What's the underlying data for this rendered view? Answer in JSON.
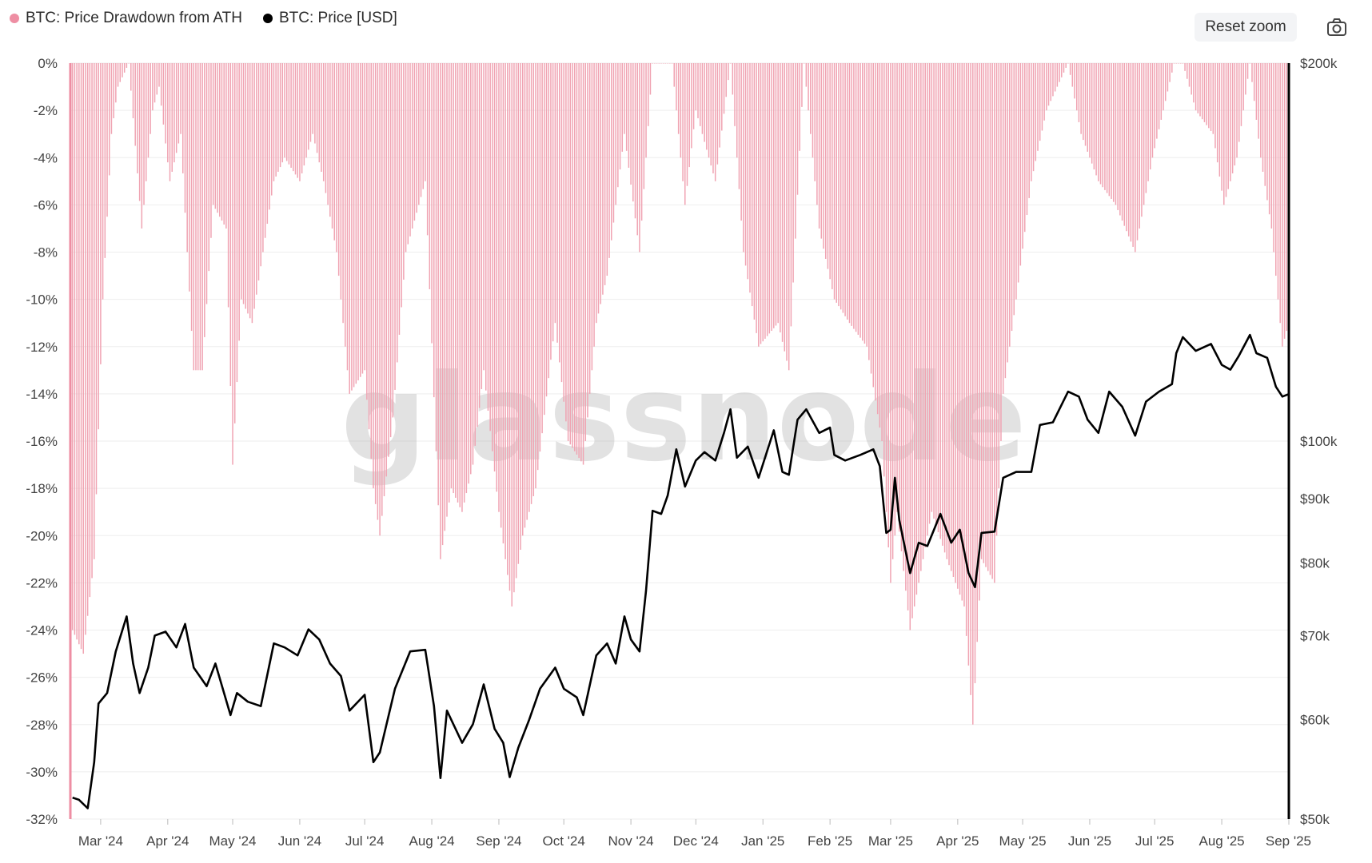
{
  "legend": {
    "series1": "BTC: Price Drawdown from ATH",
    "series2": "BTC: Price [USD]"
  },
  "toolbar": {
    "reset_zoom": "Reset zoom",
    "camera_icon": "camera-icon"
  },
  "watermark": "glassnode",
  "colors": {
    "drawdown": "#f0a3b2",
    "drawdown_axis": "#ee8ea3",
    "price": "#000000",
    "grid": "#eeeeee"
  },
  "chart_data": {
    "type": "bar",
    "x_range": [
      "2024-02-16",
      "2025-09-01"
    ],
    "x_ticks": [
      {
        "date": "2024-03-01",
        "label": "Mar '24"
      },
      {
        "date": "2024-04-01",
        "label": "Apr '24"
      },
      {
        "date": "2024-05-01",
        "label": "May '24"
      },
      {
        "date": "2024-06-01",
        "label": "Jun '24"
      },
      {
        "date": "2024-07-01",
        "label": "Jul '24"
      },
      {
        "date": "2024-08-01",
        "label": "Aug '24"
      },
      {
        "date": "2024-09-01",
        "label": "Sep '24"
      },
      {
        "date": "2024-10-01",
        "label": "Oct '24"
      },
      {
        "date": "2024-11-01",
        "label": "Nov '24"
      },
      {
        "date": "2024-12-01",
        "label": "Dec '24"
      },
      {
        "date": "2025-01-01",
        "label": "Jan '25"
      },
      {
        "date": "2025-02-01",
        "label": "Feb '25"
      },
      {
        "date": "2025-03-01",
        "label": "Mar '25"
      },
      {
        "date": "2025-04-01",
        "label": "Apr '25"
      },
      {
        "date": "2025-05-01",
        "label": "May '25"
      },
      {
        "date": "2025-06-01",
        "label": "Jun '25"
      },
      {
        "date": "2025-07-01",
        "label": "Jul '25"
      },
      {
        "date": "2025-08-01",
        "label": "Aug '25"
      },
      {
        "date": "2025-09-01",
        "label": "Sep '25"
      }
    ],
    "y_left": {
      "label": "",
      "range": [
        -32,
        0
      ],
      "ticks": [
        "0%",
        "-2%",
        "-4%",
        "-6%",
        "-8%",
        "-10%",
        "-12%",
        "-14%",
        "-16%",
        "-18%",
        "-20%",
        "-22%",
        "-24%",
        "-26%",
        "-28%",
        "-30%",
        "-32%"
      ],
      "tick_values": [
        0,
        -2,
        -4,
        -6,
        -8,
        -10,
        -12,
        -14,
        -16,
        -18,
        -20,
        -22,
        -24,
        -26,
        -28,
        -30,
        -32
      ]
    },
    "y_right": {
      "label": "",
      "scale": "log",
      "range": [
        50000,
        200000
      ],
      "ticks": [
        {
          "value": 200000,
          "label": "$200k"
        },
        {
          "value": 100000,
          "label": "$100k"
        },
        {
          "value": 90000,
          "label": "$90k"
        },
        {
          "value": 80000,
          "label": "$80k"
        },
        {
          "value": 70000,
          "label": "$70k"
        },
        {
          "value": 60000,
          "label": "$60k"
        },
        {
          "value": 50000,
          "label": "$50k"
        }
      ]
    },
    "series": [
      {
        "name": "BTC: Price Drawdown from ATH",
        "type": "bar",
        "unit": "%",
        "points": [
          [
            "2024-02-17",
            -24
          ],
          [
            "2024-02-22",
            -25
          ],
          [
            "2024-02-27",
            -21
          ],
          [
            "2024-03-02",
            -10
          ],
          [
            "2024-03-06",
            -3
          ],
          [
            "2024-03-09",
            -1
          ],
          [
            "2024-03-14",
            0
          ],
          [
            "2024-03-20",
            -7
          ],
          [
            "2024-03-25",
            -2
          ],
          [
            "2024-03-28",
            -1
          ],
          [
            "2024-04-02",
            -5
          ],
          [
            "2024-04-07",
            -3
          ],
          [
            "2024-04-13",
            -13
          ],
          [
            "2024-04-17",
            -13
          ],
          [
            "2024-04-22",
            -6
          ],
          [
            "2024-04-28",
            -7
          ],
          [
            "2024-05-01",
            -17
          ],
          [
            "2024-05-05",
            -10
          ],
          [
            "2024-05-10",
            -11
          ],
          [
            "2024-05-15",
            -8
          ],
          [
            "2024-05-20",
            -5
          ],
          [
            "2024-05-25",
            -4
          ],
          [
            "2024-06-01",
            -5
          ],
          [
            "2024-06-07",
            -3
          ],
          [
            "2024-06-12",
            -5
          ],
          [
            "2024-06-18",
            -8
          ],
          [
            "2024-06-24",
            -14
          ],
          [
            "2024-07-01",
            -13
          ],
          [
            "2024-07-05",
            -18
          ],
          [
            "2024-07-08",
            -20
          ],
          [
            "2024-07-14",
            -15
          ],
          [
            "2024-07-20",
            -8
          ],
          [
            "2024-07-29",
            -5
          ],
          [
            "2024-08-05",
            -21
          ],
          [
            "2024-08-10",
            -18
          ],
          [
            "2024-08-15",
            -19
          ],
          [
            "2024-08-20",
            -17
          ],
          [
            "2024-08-25",
            -13
          ],
          [
            "2024-09-01",
            -19
          ],
          [
            "2024-09-07",
            -23
          ],
          [
            "2024-09-12",
            -20
          ],
          [
            "2024-09-18",
            -18
          ],
          [
            "2024-09-27",
            -11
          ],
          [
            "2024-10-03",
            -16
          ],
          [
            "2024-10-10",
            -17
          ],
          [
            "2024-10-16",
            -11
          ],
          [
            "2024-10-21",
            -9
          ],
          [
            "2024-10-29",
            -3
          ],
          [
            "2024-11-05",
            -8
          ],
          [
            "2024-11-11",
            0
          ],
          [
            "2024-11-20",
            0
          ],
          [
            "2024-11-26",
            -6
          ],
          [
            "2024-12-01",
            -2
          ],
          [
            "2024-12-10",
            -5
          ],
          [
            "2024-12-17",
            0
          ],
          [
            "2024-12-23",
            -8
          ],
          [
            "2024-12-30",
            -12
          ],
          [
            "2025-01-08",
            -11
          ],
          [
            "2025-01-13",
            -13
          ],
          [
            "2025-01-20",
            0
          ],
          [
            "2025-01-27",
            -7
          ],
          [
            "2025-02-03",
            -10
          ],
          [
            "2025-02-10",
            -11
          ],
          [
            "2025-02-18",
            -12
          ],
          [
            "2025-02-25",
            -16
          ],
          [
            "2025-03-01",
            -22
          ],
          [
            "2025-03-04",
            -19
          ],
          [
            "2025-03-10",
            -24
          ],
          [
            "2025-03-14",
            -22
          ],
          [
            "2025-03-20",
            -19
          ],
          [
            "2025-03-27",
            -21
          ],
          [
            "2025-03-31",
            -22
          ],
          [
            "2025-04-04",
            -23
          ],
          [
            "2025-04-08",
            -28
          ],
          [
            "2025-04-12",
            -21
          ],
          [
            "2025-04-18",
            -22
          ],
          [
            "2025-04-22",
            -14
          ],
          [
            "2025-04-28",
            -10
          ],
          [
            "2025-05-05",
            -5
          ],
          [
            "2025-05-12",
            -2
          ],
          [
            "2025-05-22",
            0
          ],
          [
            "2025-05-28",
            -3
          ],
          [
            "2025-06-05",
            -5
          ],
          [
            "2025-06-13",
            -6
          ],
          [
            "2025-06-22",
            -8
          ],
          [
            "2025-06-30",
            -4
          ],
          [
            "2025-07-10",
            0
          ],
          [
            "2025-07-14",
            0
          ],
          [
            "2025-07-20",
            -2
          ],
          [
            "2025-07-28",
            -3
          ],
          [
            "2025-08-02",
            -6
          ],
          [
            "2025-08-08",
            -4
          ],
          [
            "2025-08-14",
            0
          ],
          [
            "2025-08-19",
            -4
          ],
          [
            "2025-08-24",
            -7
          ],
          [
            "2025-08-29",
            -12
          ],
          [
            "2025-09-01",
            -11
          ]
        ]
      },
      {
        "name": "BTC: Price [USD]",
        "type": "line",
        "unit": "USD",
        "points": [
          [
            "2024-02-17",
            52000
          ],
          [
            "2024-02-20",
            51800
          ],
          [
            "2024-02-24",
            51000
          ],
          [
            "2024-02-27",
            55500
          ],
          [
            "2024-02-29",
            61800
          ],
          [
            "2024-03-04",
            63000
          ],
          [
            "2024-03-08",
            68000
          ],
          [
            "2024-03-13",
            72500
          ],
          [
            "2024-03-16",
            66500
          ],
          [
            "2024-03-19",
            63000
          ],
          [
            "2024-03-23",
            66000
          ],
          [
            "2024-03-26",
            70000
          ],
          [
            "2024-03-31",
            70500
          ],
          [
            "2024-04-05",
            68500
          ],
          [
            "2024-04-09",
            71500
          ],
          [
            "2024-04-13",
            66000
          ],
          [
            "2024-04-19",
            63800
          ],
          [
            "2024-04-23",
            66500
          ],
          [
            "2024-04-30",
            60500
          ],
          [
            "2024-05-03",
            63000
          ],
          [
            "2024-05-08",
            62000
          ],
          [
            "2024-05-14",
            61500
          ],
          [
            "2024-05-20",
            69000
          ],
          [
            "2024-05-25",
            68500
          ],
          [
            "2024-05-31",
            67500
          ],
          [
            "2024-06-05",
            70800
          ],
          [
            "2024-06-10",
            69500
          ],
          [
            "2024-06-15",
            66500
          ],
          [
            "2024-06-20",
            65000
          ],
          [
            "2024-06-24",
            61000
          ],
          [
            "2024-07-01",
            62800
          ],
          [
            "2024-07-05",
            55500
          ],
          [
            "2024-07-08",
            56500
          ],
          [
            "2024-07-15",
            63500
          ],
          [
            "2024-07-22",
            68000
          ],
          [
            "2024-07-29",
            68200
          ],
          [
            "2024-08-02",
            61500
          ],
          [
            "2024-08-05",
            53900
          ],
          [
            "2024-08-08",
            61000
          ],
          [
            "2024-08-15",
            57500
          ],
          [
            "2024-08-20",
            59500
          ],
          [
            "2024-08-25",
            64000
          ],
          [
            "2024-08-30",
            59000
          ],
          [
            "2024-09-03",
            57500
          ],
          [
            "2024-09-06",
            54000
          ],
          [
            "2024-09-10",
            57000
          ],
          [
            "2024-09-15",
            60000
          ],
          [
            "2024-09-20",
            63500
          ],
          [
            "2024-09-27",
            66000
          ],
          [
            "2024-10-01",
            63500
          ],
          [
            "2024-10-07",
            62500
          ],
          [
            "2024-10-10",
            60500
          ],
          [
            "2024-10-16",
            67500
          ],
          [
            "2024-10-21",
            69000
          ],
          [
            "2024-10-25",
            66500
          ],
          [
            "2024-10-29",
            72500
          ],
          [
            "2024-11-01",
            69500
          ],
          [
            "2024-11-05",
            68000
          ],
          [
            "2024-11-08",
            76000
          ],
          [
            "2024-11-11",
            88000
          ],
          [
            "2024-11-15",
            87500
          ],
          [
            "2024-11-18",
            90500
          ],
          [
            "2024-11-22",
            98500
          ],
          [
            "2024-11-26",
            92000
          ],
          [
            "2024-12-01",
            96500
          ],
          [
            "2024-12-05",
            98000
          ],
          [
            "2024-12-10",
            96500
          ],
          [
            "2024-12-14",
            101500
          ],
          [
            "2024-12-17",
            106000
          ],
          [
            "2024-12-20",
            97000
          ],
          [
            "2024-12-25",
            99000
          ],
          [
            "2024-12-30",
            93500
          ],
          [
            "2025-01-06",
            102000
          ],
          [
            "2025-01-10",
            94500
          ],
          [
            "2025-01-13",
            94000
          ],
          [
            "2025-01-17",
            104000
          ],
          [
            "2025-01-21",
            106000
          ],
          [
            "2025-01-27",
            101500
          ],
          [
            "2025-02-01",
            102500
          ],
          [
            "2025-02-03",
            97500
          ],
          [
            "2025-02-08",
            96500
          ],
          [
            "2025-02-15",
            97500
          ],
          [
            "2025-02-21",
            98500
          ],
          [
            "2025-02-24",
            95500
          ],
          [
            "2025-02-27",
            84500
          ],
          [
            "2025-03-01",
            85000
          ],
          [
            "2025-03-03",
            93500
          ],
          [
            "2025-03-05",
            86500
          ],
          [
            "2025-03-10",
            78500
          ],
          [
            "2025-03-14",
            83000
          ],
          [
            "2025-03-18",
            82500
          ],
          [
            "2025-03-24",
            87500
          ],
          [
            "2025-03-29",
            83000
          ],
          [
            "2025-04-02",
            85000
          ],
          [
            "2025-04-06",
            78500
          ],
          [
            "2025-04-09",
            76500
          ],
          [
            "2025-04-12",
            84500
          ],
          [
            "2025-04-18",
            84700
          ],
          [
            "2025-04-22",
            93500
          ],
          [
            "2025-04-28",
            94500
          ],
          [
            "2025-05-05",
            94500
          ],
          [
            "2025-05-09",
            103000
          ],
          [
            "2025-05-15",
            103500
          ],
          [
            "2025-05-22",
            109500
          ],
          [
            "2025-05-27",
            108500
          ],
          [
            "2025-05-31",
            104000
          ],
          [
            "2025-06-05",
            101500
          ],
          [
            "2025-06-10",
            109500
          ],
          [
            "2025-06-16",
            106500
          ],
          [
            "2025-06-22",
            101000
          ],
          [
            "2025-06-27",
            107500
          ],
          [
            "2025-07-03",
            109500
          ],
          [
            "2025-07-09",
            111000
          ],
          [
            "2025-07-11",
            117500
          ],
          [
            "2025-07-14",
            121000
          ],
          [
            "2025-07-20",
            118000
          ],
          [
            "2025-07-27",
            119500
          ],
          [
            "2025-08-01",
            115000
          ],
          [
            "2025-08-05",
            114000
          ],
          [
            "2025-08-09",
            117000
          ],
          [
            "2025-08-14",
            121500
          ],
          [
            "2025-08-17",
            117500
          ],
          [
            "2025-08-22",
            116500
          ],
          [
            "2025-08-26",
            110500
          ],
          [
            "2025-08-29",
            108500
          ],
          [
            "2025-09-01",
            109000
          ]
        ]
      }
    ]
  }
}
